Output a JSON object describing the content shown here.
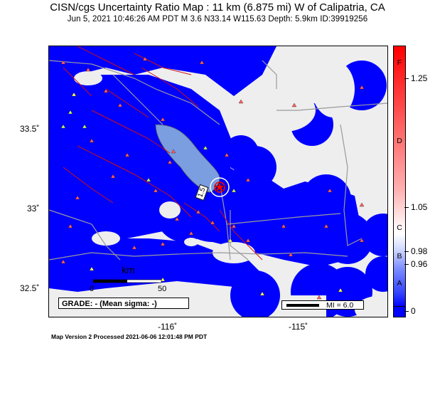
{
  "header": {
    "title": "CISN/cgs Uncertainty Ratio Map : 11 km (6.875 mi) W of Calipatria, CA",
    "subtitle": "Jun  5, 2021 10:46:26 AM PDT   M 3.6   N33.14 W115.63   Depth: 5.9km   ID:39919256"
  },
  "axes": {
    "lat_labels": [
      "33.5˚",
      "33˚",
      "32.5˚"
    ],
    "lon_labels": [
      "-116˚",
      "-115˚"
    ]
  },
  "map": {
    "scale_label": "km",
    "scale_ticks": [
      "0",
      "50"
    ],
    "contour_label": "1.5",
    "grade_text": "GRADE: - (Mean sigma: -)",
    "mi_text": "MI = 6.0",
    "colors": {
      "coverage": "#0000ff",
      "background": "#eeeeee",
      "lake": "#7a9ee0",
      "fault": "#d01010",
      "road": "#9a9a9a"
    }
  },
  "colorbar": {
    "letters": [
      "F",
      "D",
      "C",
      "B",
      "A"
    ],
    "values": [
      "1.25",
      "1.05",
      "0.98",
      "0.96",
      "0"
    ]
  },
  "footer": "Map Version 2 Processed 2021-06-06 12:01:48 PM PDT"
}
